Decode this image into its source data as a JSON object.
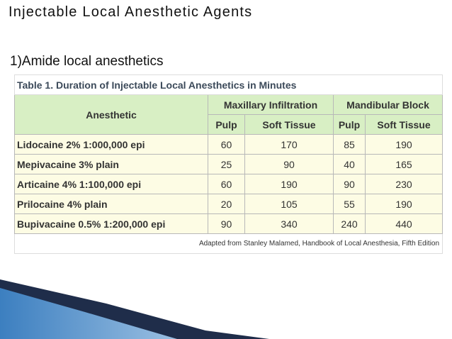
{
  "title": "Injectable Local Anesthetic Agents",
  "subtitle": "1)Amide local anesthetics",
  "table": {
    "caption": "Table 1. Duration of Injectable Local Anesthetics in Minutes",
    "header": {
      "anesthetic": "Anesthetic",
      "groups": [
        "Maxillary Infiltration",
        "Mandibular Block"
      ],
      "subheaders": [
        "Pulp",
        "Soft Tissue",
        "Pulp",
        "Soft Tissue"
      ]
    },
    "rows": [
      [
        "Lidocaine 2% 1:000,000 epi",
        60,
        170,
        85,
        190
      ],
      [
        "Mepivacaine 3% plain",
        25,
        90,
        40,
        165
      ],
      [
        "Articaine 4% 1:100,000 epi",
        60,
        190,
        90,
        230
      ],
      [
        "Prilocaine 4% plain",
        20,
        105,
        55,
        190
      ],
      [
        "Bupivacaine 0.5% 1:200,000 epi",
        90,
        340,
        240,
        440
      ]
    ],
    "source": "Adapted from Stanley Malamed, Handbook of Local Anesthesia, Fifth Edition"
  }
}
